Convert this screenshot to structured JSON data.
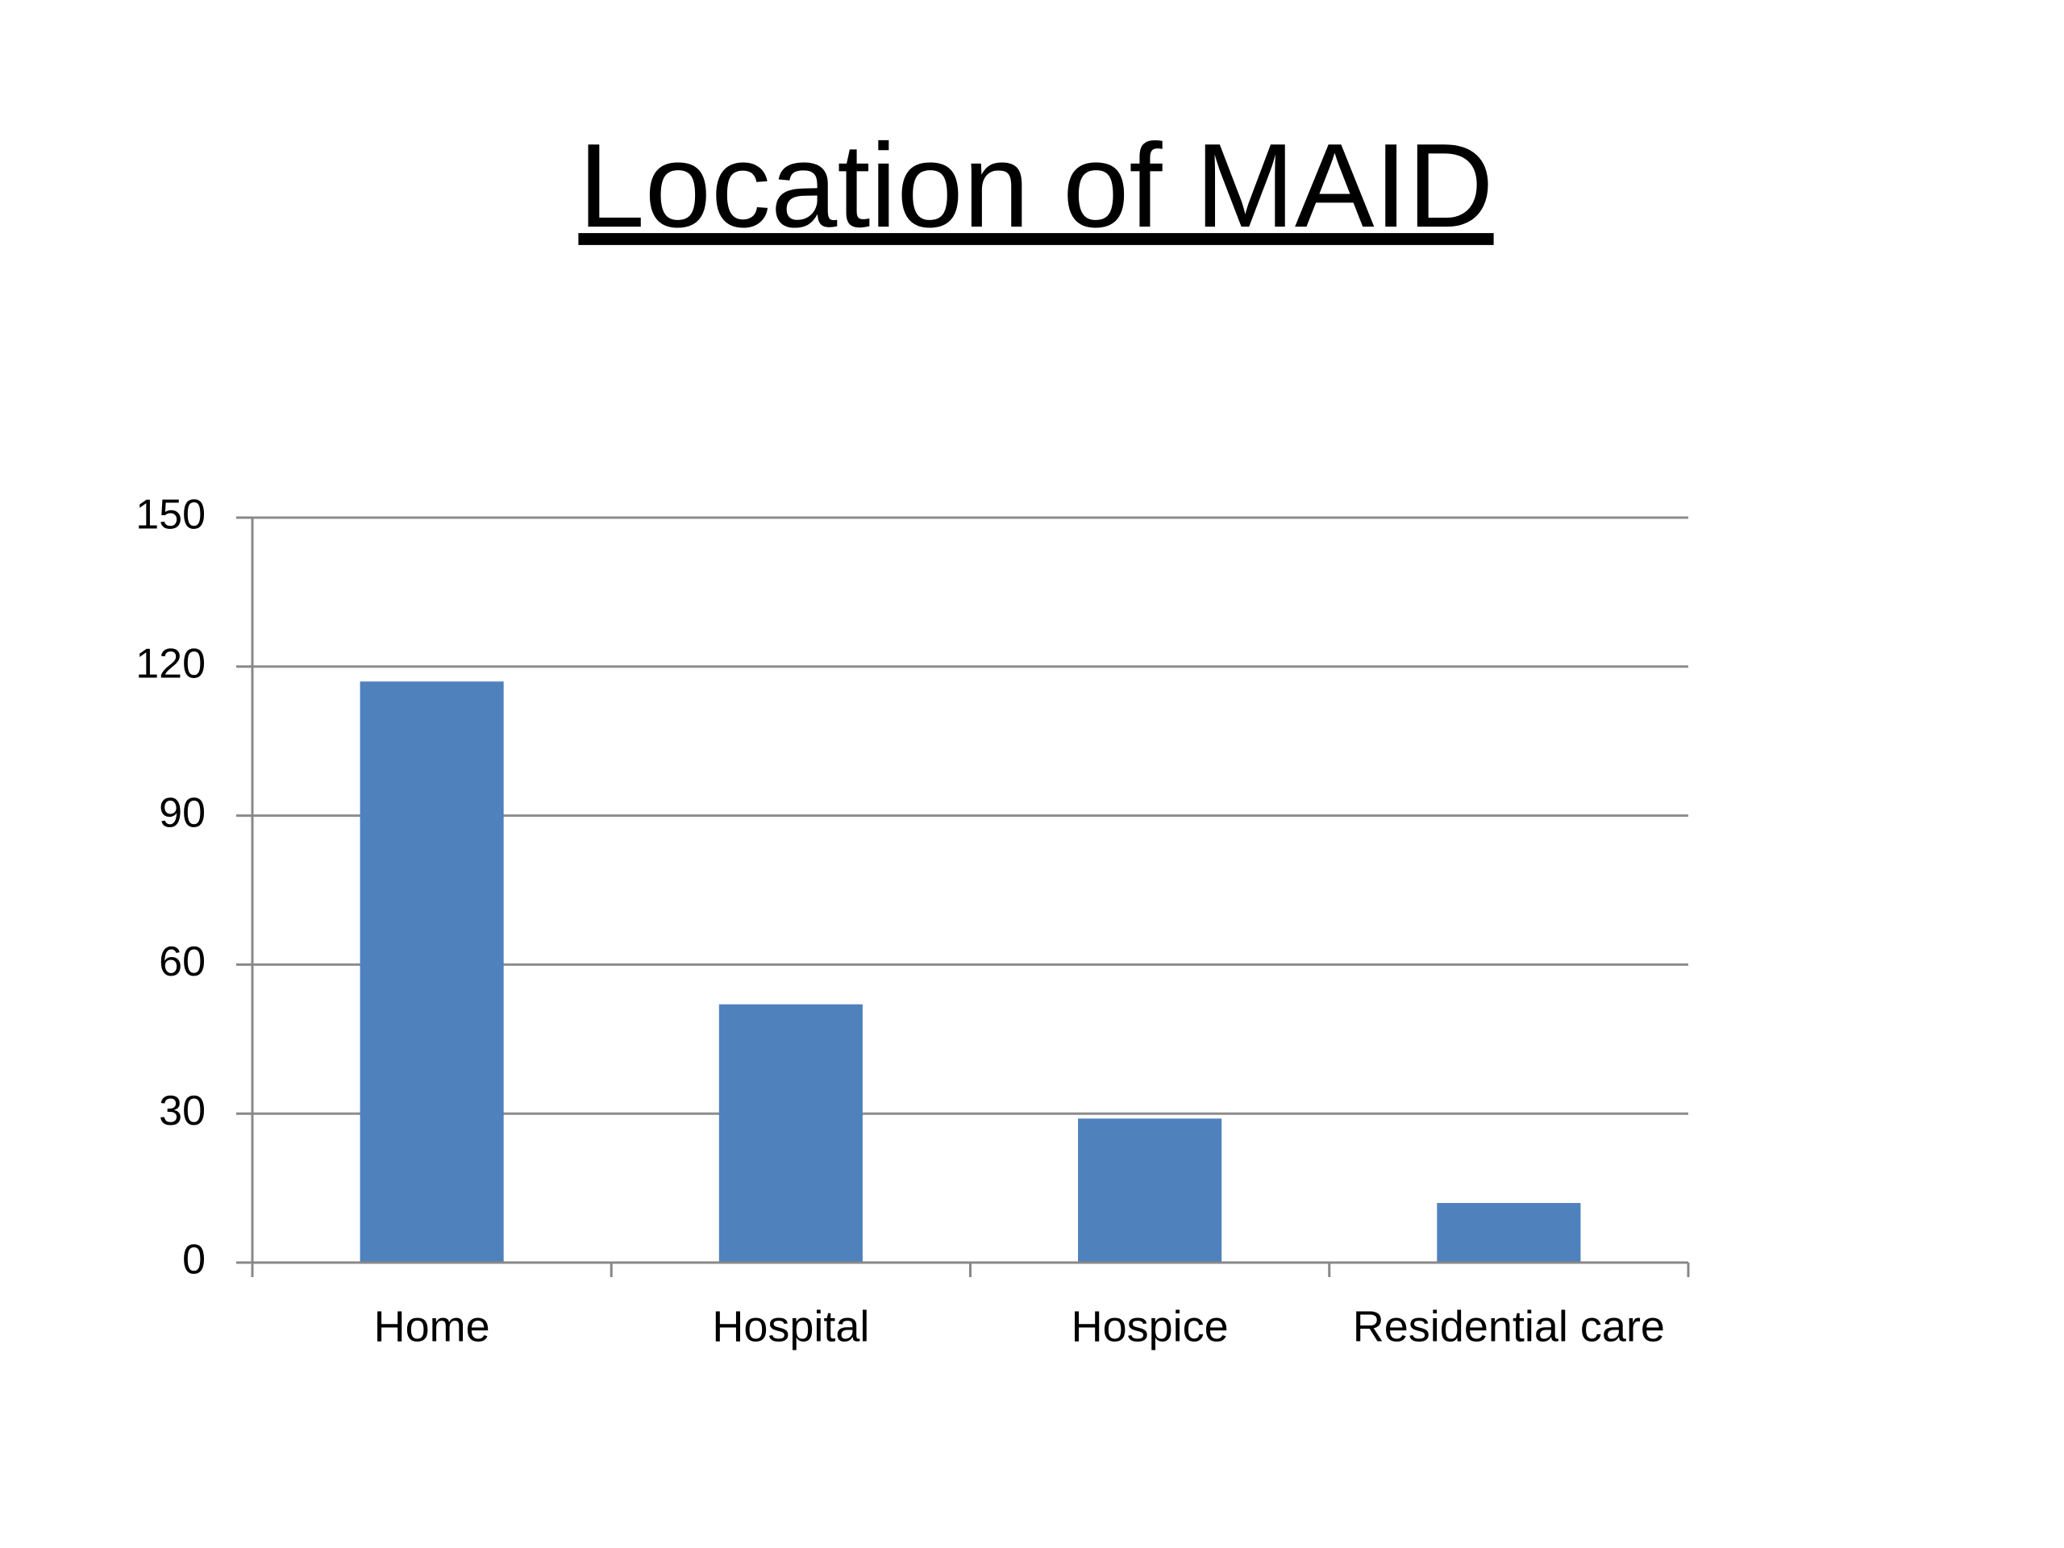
{
  "chart_data": {
    "type": "bar",
    "title": "Location of MAID",
    "categories": [
      "Home",
      "Hospital",
      "Hospice",
      "Residential care"
    ],
    "values": [
      117,
      52,
      29,
      12
    ],
    "color": "#4f81bd",
    "ylim": [
      0,
      150
    ],
    "yticks": [
      0,
      30,
      60,
      90,
      120,
      150
    ],
    "grid": true
  }
}
